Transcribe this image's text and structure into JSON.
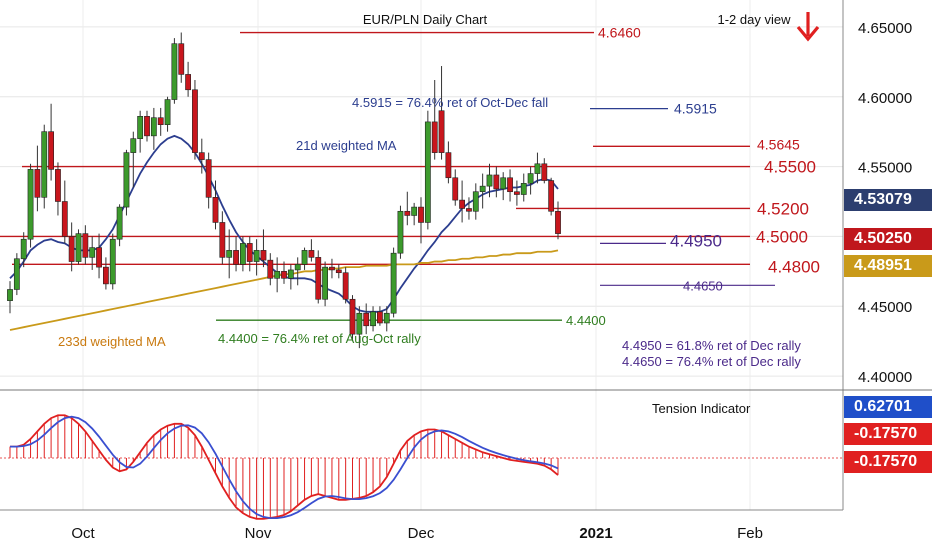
{
  "chart_data": {
    "type": "candlestick",
    "title": "EUR/PLN Daily Chart",
    "subtitle": "1-2 day view",
    "price_axis": {
      "ylim": [
        4.38,
        4.67
      ],
      "ticks": [
        "4.65000",
        "4.60000",
        "4.55000",
        "4.50000",
        "4.45000",
        "4.40000"
      ]
    },
    "x_tick_labels": [
      "Oct",
      "Nov",
      "Dec",
      "2021",
      "Feb"
    ],
    "candles": [
      [
        4.454,
        4.468,
        4.445,
        4.462
      ],
      [
        4.462,
        4.488,
        4.458,
        4.484
      ],
      [
        4.484,
        4.503,
        4.478,
        4.498
      ],
      [
        4.498,
        4.552,
        4.492,
        4.548
      ],
      [
        4.548,
        4.565,
        4.518,
        4.528
      ],
      [
        4.528,
        4.58,
        4.52,
        4.575
      ],
      [
        4.575,
        4.595,
        4.54,
        4.548
      ],
      [
        4.548,
        4.553,
        4.515,
        4.525
      ],
      [
        4.525,
        4.54,
        4.495,
        4.5
      ],
      [
        4.5,
        4.51,
        4.475,
        4.482
      ],
      [
        4.482,
        4.505,
        4.48,
        4.502
      ],
      [
        4.502,
        4.508,
        4.48,
        4.485
      ],
      [
        4.485,
        4.5,
        4.476,
        4.492
      ],
      [
        4.492,
        4.502,
        4.47,
        4.478
      ],
      [
        4.478,
        4.485,
        4.462,
        4.466
      ],
      [
        4.466,
        4.502,
        4.462,
        4.498
      ],
      [
        4.498,
        4.523,
        4.493,
        4.521
      ],
      [
        4.521,
        4.562,
        4.515,
        4.56
      ],
      [
        4.56,
        4.575,
        4.535,
        4.57
      ],
      [
        4.57,
        4.59,
        4.56,
        4.586
      ],
      [
        4.586,
        4.59,
        4.568,
        4.572
      ],
      [
        4.572,
        4.592,
        4.562,
        4.585
      ],
      [
        4.585,
        4.592,
        4.572,
        4.58
      ],
      [
        4.58,
        4.6,
        4.575,
        4.598
      ],
      [
        4.598,
        4.642,
        4.595,
        4.638
      ],
      [
        4.638,
        4.646,
        4.61,
        4.616
      ],
      [
        4.616,
        4.625,
        4.6,
        4.605
      ],
      [
        4.605,
        4.612,
        4.555,
        4.56
      ],
      [
        4.56,
        4.57,
        4.545,
        4.555
      ],
      [
        4.555,
        4.56,
        4.52,
        4.528
      ],
      [
        4.528,
        4.54,
        4.505,
        4.51
      ],
      [
        4.51,
        4.518,
        4.48,
        4.485
      ],
      [
        4.485,
        4.505,
        4.47,
        4.49
      ],
      [
        4.49,
        4.5,
        4.475,
        4.48
      ],
      [
        4.48,
        4.5,
        4.475,
        4.495
      ],
      [
        4.495,
        4.5,
        4.475,
        4.482
      ],
      [
        4.482,
        4.498,
        4.472,
        4.49
      ],
      [
        4.49,
        4.505,
        4.478,
        4.483
      ],
      [
        4.483,
        4.488,
        4.465,
        4.47
      ],
      [
        4.47,
        4.485,
        4.46,
        4.475
      ],
      [
        4.475,
        4.482,
        4.466,
        4.47
      ],
      [
        4.47,
        4.48,
        4.462,
        4.476
      ],
      [
        4.476,
        4.485,
        4.465,
        4.48
      ],
      [
        4.48,
        4.492,
        4.476,
        4.49
      ],
      [
        4.49,
        4.498,
        4.482,
        4.485
      ],
      [
        4.485,
        4.49,
        4.452,
        4.455
      ],
      [
        4.455,
        4.482,
        4.45,
        4.478
      ],
      [
        4.478,
        4.484,
        4.47,
        4.476
      ],
      [
        4.476,
        4.48,
        4.47,
        4.474
      ],
      [
        4.474,
        4.478,
        4.452,
        4.455
      ],
      [
        4.455,
        4.458,
        4.425,
        4.43
      ],
      [
        4.43,
        4.45,
        4.42,
        4.445
      ],
      [
        4.445,
        4.452,
        4.43,
        4.436
      ],
      [
        4.436,
        4.45,
        4.432,
        4.446
      ],
      [
        4.446,
        4.45,
        4.436,
        4.438
      ],
      [
        4.438,
        4.45,
        4.432,
        4.445
      ],
      [
        4.445,
        4.492,
        4.442,
        4.488
      ],
      [
        4.488,
        4.522,
        4.484,
        4.518
      ],
      [
        4.518,
        4.532,
        4.508,
        4.515
      ],
      [
        4.515,
        4.524,
        4.508,
        4.521
      ],
      [
        4.521,
        4.528,
        4.495,
        4.51
      ],
      [
        4.51,
        4.59,
        4.505,
        4.582
      ],
      [
        4.582,
        4.612,
        4.555,
        4.56
      ],
      [
        4.59,
        4.622,
        4.555,
        4.56
      ],
      [
        4.56,
        4.568,
        4.538,
        4.542
      ],
      [
        4.542,
        4.548,
        4.522,
        4.526
      ],
      [
        4.526,
        4.54,
        4.51,
        4.52
      ],
      [
        4.52,
        4.528,
        4.512,
        4.518
      ],
      [
        4.518,
        4.538,
        4.512,
        4.532
      ],
      [
        4.532,
        4.545,
        4.52,
        4.536
      ],
      [
        4.536,
        4.552,
        4.528,
        4.544
      ],
      [
        4.544,
        4.55,
        4.528,
        4.534
      ],
      [
        4.534,
        4.546,
        4.526,
        4.542
      ],
      [
        4.542,
        4.548,
        4.525,
        4.532
      ],
      [
        4.532,
        4.54,
        4.522,
        4.53
      ],
      [
        4.53,
        4.545,
        4.525,
        4.538
      ],
      [
        4.538,
        4.55,
        4.53,
        4.545
      ],
      [
        4.545,
        4.56,
        4.538,
        4.552
      ],
      [
        4.552,
        4.556,
        4.538,
        4.54
      ],
      [
        4.54,
        4.542,
        4.515,
        4.518
      ],
      [
        4.518,
        4.525,
        4.498,
        4.502
      ]
    ],
    "lines_21d_weighted_MA": [
      4.47,
      4.475,
      4.482,
      4.49,
      4.494,
      4.497,
      4.498,
      4.496,
      4.495,
      4.492,
      4.49,
      4.49,
      4.49,
      4.492,
      4.498,
      4.505,
      4.515,
      4.525,
      4.535,
      4.545,
      4.553,
      4.56,
      4.566,
      4.57,
      4.572,
      4.57,
      4.566,
      4.56,
      4.552,
      4.543,
      4.533,
      4.522,
      4.512,
      4.503,
      4.496,
      4.49,
      4.486,
      4.482,
      4.478,
      4.474,
      4.471,
      4.47,
      4.47,
      4.47,
      4.469,
      4.466,
      4.463,
      4.461,
      4.459,
      4.455,
      4.45,
      4.447,
      4.446,
      4.446,
      4.446,
      4.448,
      4.455,
      4.463,
      4.47,
      4.477,
      4.483,
      4.49,
      4.496,
      4.503,
      4.508,
      4.514,
      4.52,
      4.524,
      4.527,
      4.53,
      4.532,
      4.533,
      4.534,
      4.535,
      4.535,
      4.536,
      4.537,
      4.54,
      4.541,
      4.54,
      4.534
    ],
    "lines_233d_weighted_MA": [
      4.433,
      4.434,
      4.435,
      4.436,
      4.437,
      4.438,
      4.439,
      4.44,
      4.441,
      4.442,
      4.443,
      4.444,
      4.445,
      4.446,
      4.447,
      4.448,
      4.449,
      4.45,
      4.451,
      4.452,
      4.453,
      4.454,
      4.455,
      4.456,
      4.457,
      4.458,
      4.459,
      4.46,
      4.461,
      4.462,
      4.463,
      4.464,
      4.465,
      4.466,
      4.467,
      4.468,
      4.469,
      4.47,
      4.471,
      4.472,
      4.473,
      4.473,
      4.474,
      4.475,
      4.475,
      4.476,
      4.476,
      4.477,
      4.477,
      4.478,
      4.478,
      4.478,
      4.479,
      4.479,
      4.479,
      4.479,
      4.48,
      4.48,
      4.48,
      4.48,
      4.481,
      4.481,
      4.482,
      4.482,
      4.483,
      4.483,
      4.484,
      4.484,
      4.485,
      4.485,
      4.486,
      4.486,
      4.487,
      4.487,
      4.488,
      4.488,
      4.488,
      4.489,
      4.489,
      4.489,
      4.49
    ],
    "levels": [
      {
        "value": 4.646,
        "label": "4.6460",
        "color": "#c0171c"
      },
      {
        "value": 4.5915,
        "label": "4.5915",
        "color": "#2c3e8f"
      },
      {
        "value": 4.5645,
        "label": "4.5645",
        "color": "#c0171c"
      },
      {
        "value": 4.55,
        "label": "4.5500",
        "color": "#c0171c"
      },
      {
        "value": 4.52,
        "label": "4.5200",
        "color": "#c0171c"
      },
      {
        "value": 4.5,
        "label": "4.5000",
        "color": "#c0171c"
      },
      {
        "value": 4.495,
        "label": "4.4950",
        "color": "#4b2a8a"
      },
      {
        "value": 4.48,
        "label": "4.4800",
        "color": "#c0171c"
      },
      {
        "value": 4.465,
        "label": "4.4650",
        "color": "#4b2a8a"
      },
      {
        "value": 4.44,
        "label": "4.4400",
        "color": "#2f7d1f"
      }
    ],
    "annotations": {
      "oct_dec_fall": "4.5915 = 76.4% ret of Oct-Dec fall",
      "aug_oct_rally": "4.4400 = 76.4% ret of Aug-Oct rally",
      "dec_rally_618": "4.4950 = 61.8% ret of Dec rally",
      "dec_rally_764": "4.4650 = 76.4% ret of Dec rally",
      "ma21": "21d weighted MA",
      "ma233": "233d weighted MA"
    },
    "price_tags": [
      {
        "label": "4.53079",
        "color": "#2c3e6f"
      },
      {
        "label": "4.50250",
        "color": "#c0171c"
      },
      {
        "label": "4.48951",
        "color": "#c99a1a"
      }
    ],
    "indicator": {
      "title": "Tension Indicator",
      "tags": [
        {
          "label": "0.62701",
          "color": "#1f4fc9"
        },
        {
          "label": "-0.17570",
          "color": "#e02020"
        },
        {
          "label": "-0.17570",
          "color": "#e02020"
        }
      ],
      "values": [
        0.12,
        0.12,
        0.14,
        0.2,
        0.28,
        0.36,
        0.42,
        0.45,
        0.45,
        0.42,
        0.36,
        0.28,
        0.18,
        0.08,
        -0.02,
        -0.1,
        -0.14,
        -0.12,
        -0.04,
        0.06,
        0.16,
        0.24,
        0.3,
        0.34,
        0.36,
        0.36,
        0.32,
        0.24,
        0.12,
        -0.02,
        -0.16,
        -0.3,
        -0.42,
        -0.52,
        -0.58,
        -0.62,
        -0.64,
        -0.64,
        -0.63,
        -0.62,
        -0.6,
        -0.56,
        -0.5,
        -0.44,
        -0.4,
        -0.38,
        -0.4,
        -0.42,
        -0.44,
        -0.44,
        -0.43,
        -0.42,
        -0.4,
        -0.36,
        -0.3,
        -0.2,
        -0.06,
        0.08,
        0.18,
        0.24,
        0.28,
        0.3,
        0.3,
        0.28,
        0.24,
        0.2,
        0.16,
        0.12,
        0.09,
        0.06,
        0.04,
        0.02,
        0.0,
        -0.02,
        -0.03,
        -0.04,
        -0.05,
        -0.06,
        -0.08,
        -0.12,
        -0.18
      ]
    },
    "arrow_direction": "down"
  }
}
